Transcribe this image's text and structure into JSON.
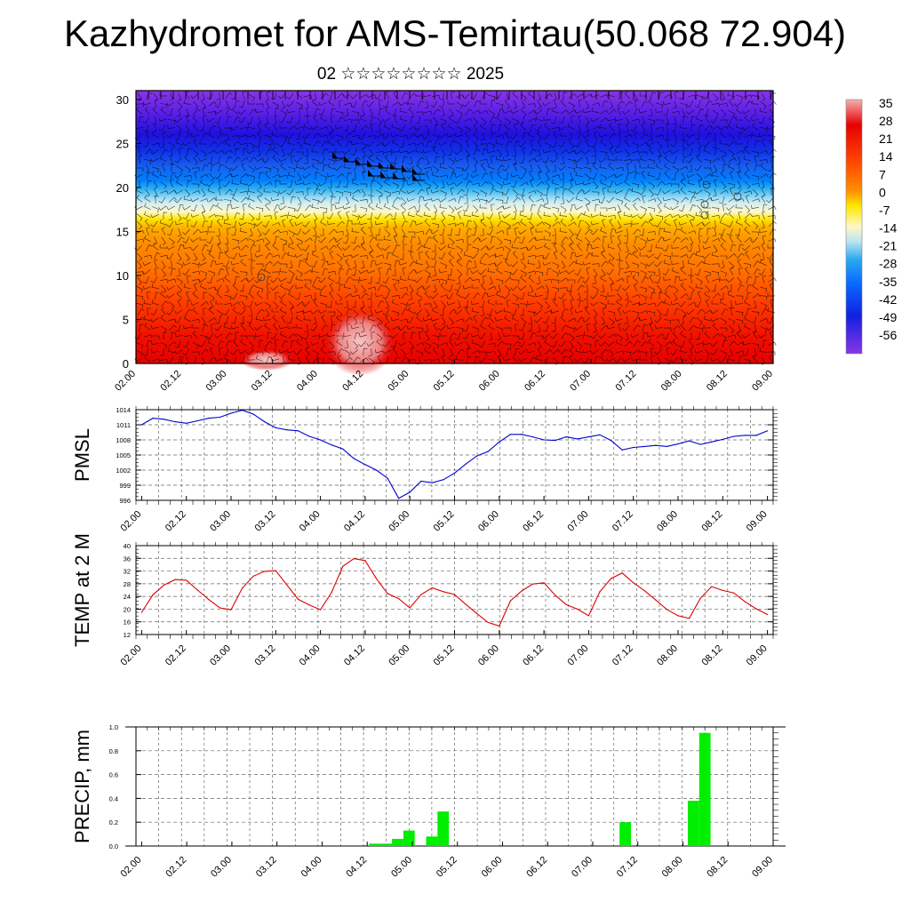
{
  "title": "Kazhydromet for AMS-Temirtau(50.068 72.904)",
  "subtitle": "02 ☆☆☆☆☆☆☆☆ 2025",
  "chart_data": [
    {
      "type": "heatmap",
      "panel": "cross-section",
      "x_ticks": [
        "02.00",
        "02.12",
        "03.00",
        "03.12",
        "04.00",
        "04.12",
        "05.00",
        "05.12",
        "06.00",
        "06.12",
        "07.00",
        "07.12",
        "08.00",
        "08.12",
        "09.00"
      ],
      "y_ticks": [
        0,
        5,
        10,
        15,
        20,
        25,
        30
      ],
      "ylim": [
        0,
        31
      ],
      "colorbar_labels": [
        "35",
        "28",
        "21",
        "14",
        "7",
        "0",
        "-7",
        "-14",
        "-21",
        "-28",
        "-35",
        "-42",
        "-49",
        "-56"
      ],
      "colors": {
        "warm_max": "#f3a6a6",
        "hot": "#e60000",
        "orange": "#ff8c00",
        "yellow": "#ffe800",
        "pale": "#fff8c8",
        "light_blue": "#8fd8f5",
        "blue": "#0080ff",
        "deep_blue": "#2010e0",
        "violet": "#8a35e6"
      }
    },
    {
      "type": "line",
      "ylabel": "PMSL",
      "y_ticks": [
        "1014",
        "1011",
        "1008",
        "1005",
        "1002",
        "999",
        "996"
      ],
      "ylim": [
        996,
        1014
      ],
      "color": "#0000cc",
      "x_ticks": [
        "02.00",
        "02.12",
        "03.00",
        "03.12",
        "04.00",
        "04.12",
        "05.00",
        "05.12",
        "06.00",
        "06.12",
        "07.00",
        "07.12",
        "08.00",
        "08.12",
        "09.00"
      ],
      "x": [
        "02.00",
        "02.03",
        "02.06",
        "02.09",
        "02.12",
        "02.15",
        "02.18",
        "02.21",
        "03.00",
        "03.03",
        "03.06",
        "03.09",
        "03.12",
        "03.15",
        "03.18",
        "03.21",
        "04.00",
        "04.03",
        "04.06",
        "04.09",
        "04.12",
        "04.15",
        "04.18",
        "04.21",
        "05.00",
        "05.03",
        "05.06",
        "05.09",
        "05.12",
        "05.15",
        "05.18",
        "05.21",
        "06.00",
        "06.03",
        "06.06",
        "06.09",
        "06.12",
        "06.15",
        "06.18",
        "06.21",
        "07.00",
        "07.03",
        "07.06",
        "07.09",
        "07.12",
        "07.15",
        "07.18",
        "07.21",
        "08.00",
        "08.03",
        "08.06",
        "08.09",
        "08.12",
        "08.15",
        "08.18",
        "08.21",
        "09.00"
      ],
      "values": [
        1011.0,
        1012.3,
        1012.1,
        1011.6,
        1011.3,
        1011.8,
        1012.3,
        1012.5,
        1013.3,
        1013.9,
        1013.1,
        1011.6,
        1010.4,
        1010.0,
        1009.8,
        1008.7,
        1008.0,
        1007.0,
        1006.2,
        1004.3,
        1003.1,
        1002.0,
        1000.4,
        996.4,
        997.6,
        999.8,
        999.5,
        1000.1,
        1001.4,
        1003.2,
        1004.8,
        1005.7,
        1007.6,
        1009.1,
        1009.1,
        1008.6,
        1008.0,
        1007.9,
        1008.6,
        1008.2,
        1008.6,
        1009.0,
        1007.9,
        1006.0,
        1006.5,
        1006.7,
        1006.9,
        1006.7,
        1007.2,
        1007.8,
        1007.1,
        1007.6,
        1008.1,
        1008.7,
        1008.9,
        1008.9,
        1009.8
      ]
    },
    {
      "type": "line",
      "ylabel": "TEMP at 2 M",
      "y_ticks": [
        "40",
        "36",
        "32",
        "28",
        "24",
        "20",
        "16",
        "12"
      ],
      "ylim": [
        12,
        40
      ],
      "color": "#dd0000",
      "x_ticks": [
        "02.00",
        "02.12",
        "03.00",
        "03.12",
        "04.00",
        "04.12",
        "05.00",
        "05.12",
        "06.00",
        "06.12",
        "07.00",
        "07.12",
        "08.00",
        "08.12",
        "09.00"
      ],
      "x": [
        "02.00",
        "02.03",
        "02.06",
        "02.09",
        "02.12",
        "02.15",
        "02.18",
        "02.21",
        "03.00",
        "03.03",
        "03.06",
        "03.09",
        "03.12",
        "03.15",
        "03.18",
        "03.21",
        "04.00",
        "04.03",
        "04.06",
        "04.09",
        "04.12",
        "04.15",
        "04.18",
        "04.21",
        "05.00",
        "05.03",
        "05.06",
        "05.09",
        "05.12",
        "05.15",
        "05.18",
        "05.21",
        "06.00",
        "06.03",
        "06.06",
        "06.09",
        "06.12",
        "06.15",
        "06.18",
        "06.21",
        "07.00",
        "07.03",
        "07.06",
        "07.09",
        "07.12",
        "07.15",
        "07.18",
        "07.21",
        "08.00",
        "08.03",
        "08.06",
        "08.09",
        "08.12",
        "08.15",
        "08.18",
        "08.21",
        "09.00"
      ],
      "values": [
        19.0,
        24.5,
        27.6,
        29.3,
        29.1,
        26.0,
        23.0,
        20.4,
        19.8,
        26.6,
        30.4,
        31.9,
        32.1,
        27.6,
        23.1,
        21.3,
        19.8,
        25.3,
        33.5,
        35.9,
        35.3,
        29.6,
        24.9,
        23.3,
        20.4,
        24.6,
        26.7,
        25.5,
        24.6,
        21.5,
        18.6,
        15.8,
        14.7,
        22.6,
        25.7,
        27.9,
        28.3,
        24.4,
        21.4,
        20.0,
        17.9,
        25.5,
        29.6,
        31.4,
        28.3,
        25.8,
        22.9,
        19.9,
        17.9,
        17.1,
        23.4,
        27.1,
        25.9,
        25.1,
        22.3,
        20.1,
        18.3
      ]
    },
    {
      "type": "bar",
      "ylabel": "PRECIP, mm",
      "y_ticks": [
        "1.0",
        "0.8",
        "0.6",
        "0.4",
        "0.2",
        "0.0"
      ],
      "ylim": [
        0,
        1.0
      ],
      "color": "#00ee00",
      "x_ticks": [
        "02.00",
        "02.12",
        "03.00",
        "03.12",
        "04.00",
        "04.12",
        "05.00",
        "05.12",
        "06.00",
        "06.12",
        "07.00",
        "07.12",
        "08.00",
        "08.12",
        "09.00"
      ],
      "x": [
        "04.15",
        "04.18",
        "04.21",
        "05.00",
        "05.03",
        "05.06",
        "05.09",
        "07.09",
        "08.03",
        "08.06"
      ],
      "values": [
        0.02,
        0.02,
        0.06,
        0.13,
        0.0,
        0.08,
        0.29,
        0.2,
        0.38,
        0.95
      ]
    }
  ]
}
